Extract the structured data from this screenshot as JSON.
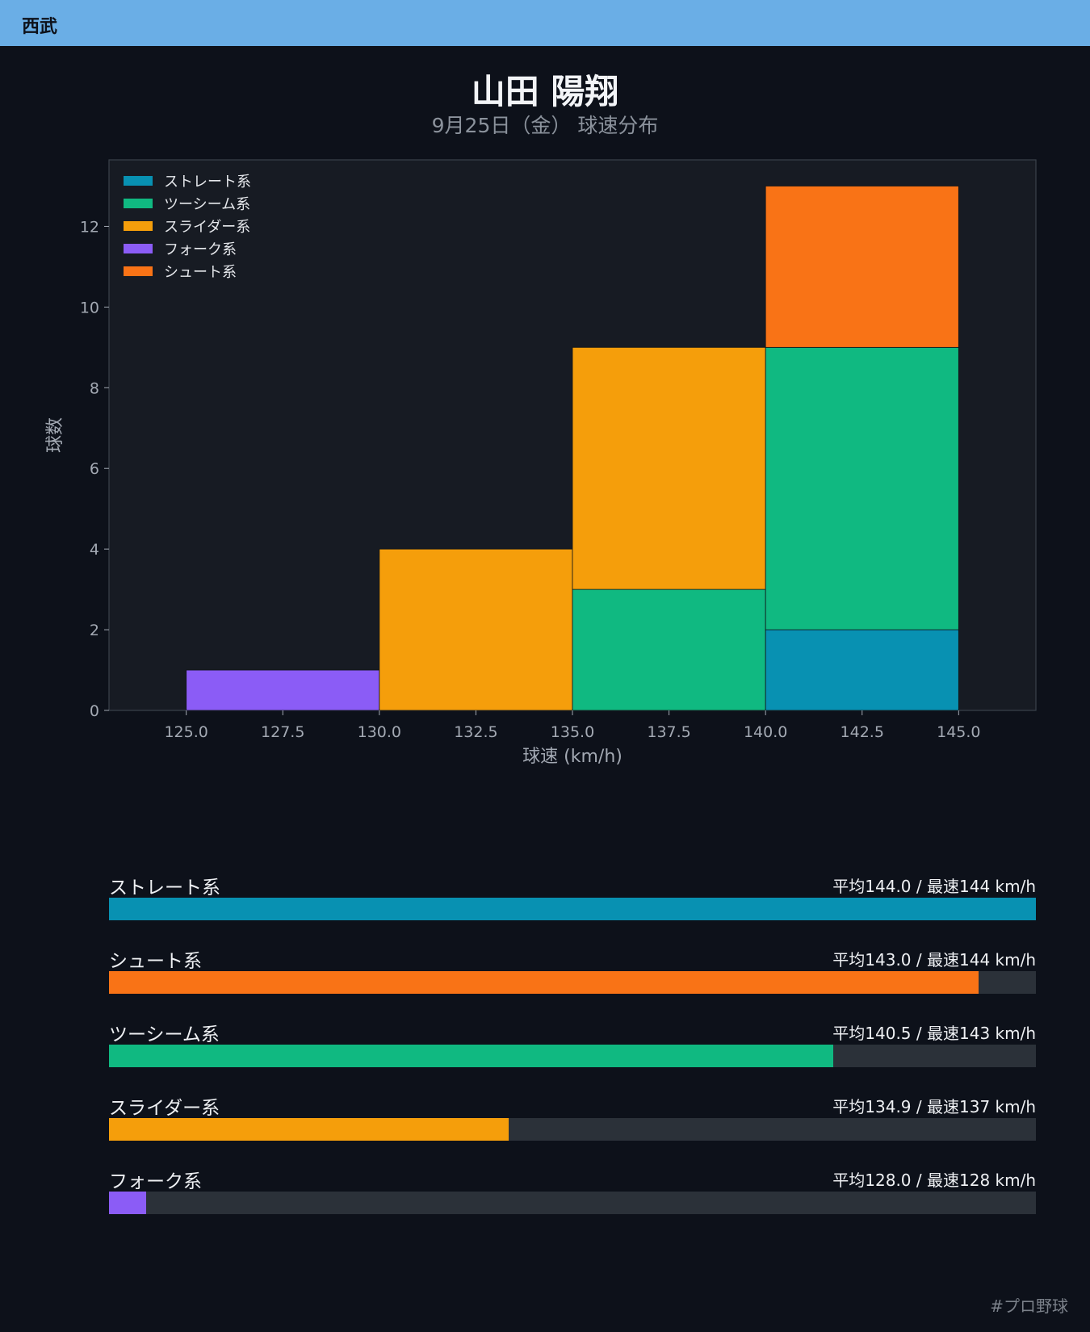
{
  "header": {
    "team": "西武"
  },
  "title": "山田 陽翔",
  "subtitle": "9月25日（金） 球速分布",
  "footer": {
    "hashtag": "#プロ野球"
  },
  "colors": {
    "header_bg": "#6aaee6",
    "background": "#0d111a",
    "plot_bg": "#171b23",
    "track": "#2b3139"
  },
  "chart_data": {
    "type": "bar",
    "stacked": true,
    "histogram": true,
    "bin_edges": [
      125.0,
      130.0,
      135.0,
      140.0,
      145.0
    ],
    "xlabel": "球速 (km/h)",
    "ylabel": "球数",
    "xlim": [
      123,
      147
    ],
    "ylim": [
      0,
      13.65
    ],
    "xticks": [
      "125.0",
      "127.5",
      "130.0",
      "132.5",
      "135.0",
      "137.5",
      "140.0",
      "142.5",
      "145.0"
    ],
    "yticks": [
      "0",
      "2",
      "4",
      "6",
      "8",
      "10",
      "12"
    ],
    "legend_position": "top-left",
    "grid": false,
    "series": [
      {
        "name": "ストレート系",
        "color": "#0891b2",
        "values": [
          0,
          0,
          0,
          2
        ]
      },
      {
        "name": "ツーシーム系",
        "color": "#10b981",
        "values": [
          0,
          0,
          3,
          7
        ]
      },
      {
        "name": "スライダー系",
        "color": "#f59e0b",
        "values": [
          0,
          4,
          6,
          0
        ]
      },
      {
        "name": "フォーク系",
        "color": "#8b5cf6",
        "values": [
          1,
          0,
          0,
          0
        ]
      },
      {
        "name": "シュート系",
        "color": "#f97316",
        "values": [
          0,
          0,
          0,
          4
        ]
      }
    ]
  },
  "speed_summary": {
    "rows": [
      {
        "name": "ストレート系",
        "stats": "平均144.0 / 最速144 km/h",
        "color": "#0891b2",
        "fill_fraction": 1.0
      },
      {
        "name": "シュート系",
        "stats": "平均143.0 / 最速144 km/h",
        "color": "#f97316",
        "fill_fraction": 0.938
      },
      {
        "name": "ツーシーム系",
        "stats": "平均140.5 / 最速143 km/h",
        "color": "#10b981",
        "fill_fraction": 0.781
      },
      {
        "name": "スライダー系",
        "stats": "平均134.9 / 最速137 km/h",
        "color": "#f59e0b",
        "fill_fraction": 0.431
      },
      {
        "name": "フォーク系",
        "stats": "平均128.0 / 最速128 km/h",
        "color": "#8b5cf6",
        "fill_fraction": 0.04
      }
    ]
  }
}
